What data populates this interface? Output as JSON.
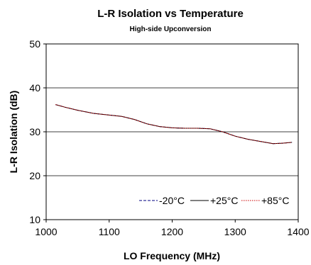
{
  "chart_data": {
    "type": "line",
    "title": "L-R Isolation vs Temperature",
    "subtitle": "High-side Upconversion",
    "xlabel": "LO Frequency (MHz)",
    "ylabel": "L-R Isolation (dB)",
    "xlim": [
      1000,
      1400
    ],
    "ylim": [
      10,
      50
    ],
    "xticks": [
      "1000",
      "1100",
      "1200",
      "1300",
      "1400"
    ],
    "yticks": [
      "10",
      "20",
      "30",
      "40",
      "50"
    ],
    "grid": "horizontal",
    "legend_position": "bottom-right",
    "series": [
      {
        "name": "-20°C",
        "color": "#000080",
        "style": "dashed",
        "x": [
          1015,
          1030,
          1050,
          1075,
          1100,
          1120,
          1140,
          1160,
          1180,
          1200,
          1220,
          1240,
          1260,
          1280,
          1300,
          1320,
          1340,
          1360,
          1375,
          1390
        ],
        "y": [
          36.2,
          35.6,
          34.9,
          34.2,
          33.8,
          33.5,
          32.8,
          31.8,
          31.2,
          30.9,
          30.8,
          30.8,
          30.7,
          30.0,
          29.0,
          28.3,
          27.8,
          27.3,
          27.4,
          27.6
        ]
      },
      {
        "name": "+25°C",
        "color": "#000000",
        "style": "solid",
        "x": [
          1015,
          1030,
          1050,
          1075,
          1100,
          1120,
          1140,
          1160,
          1180,
          1200,
          1220,
          1240,
          1260,
          1280,
          1300,
          1320,
          1340,
          1360,
          1375,
          1390
        ],
        "y": [
          36.2,
          35.6,
          34.9,
          34.2,
          33.8,
          33.5,
          32.8,
          31.8,
          31.2,
          30.9,
          30.8,
          30.8,
          30.7,
          30.0,
          29.0,
          28.3,
          27.8,
          27.3,
          27.4,
          27.6
        ]
      },
      {
        "name": "+85°C",
        "color": "#cc0000",
        "style": "dotted",
        "x": [
          1015,
          1030,
          1050,
          1075,
          1100,
          1120,
          1140,
          1160,
          1180,
          1200,
          1220,
          1240,
          1260,
          1280,
          1300,
          1320,
          1340,
          1360,
          1375,
          1390
        ],
        "y": [
          36.2,
          35.6,
          34.9,
          34.2,
          33.8,
          33.5,
          32.8,
          31.8,
          31.2,
          30.9,
          30.8,
          30.8,
          30.7,
          30.0,
          29.0,
          28.3,
          27.8,
          27.3,
          27.4,
          27.6
        ]
      }
    ]
  }
}
